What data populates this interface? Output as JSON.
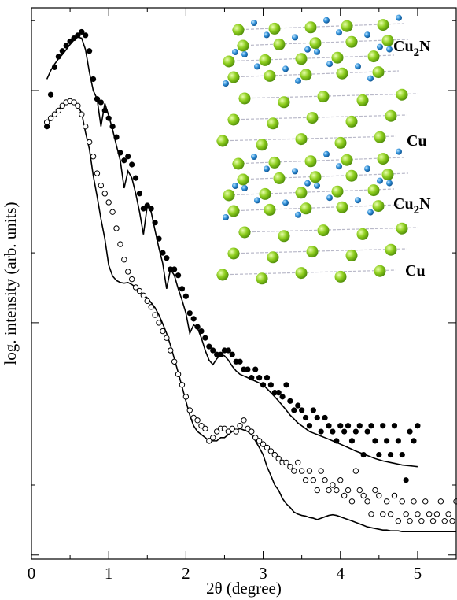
{
  "chart_data": {
    "type": "scatter",
    "ylabel": "log. intensity (arb. units)",
    "xlabel": "2θ  (degree)",
    "xlim": [
      0,
      5.5
    ],
    "xticks": [
      0,
      1,
      2,
      3,
      4,
      5
    ],
    "xminorticks": [
      0.5,
      1.5,
      2.5,
      3.5,
      4.5,
      5.5
    ],
    "ylim": [
      0.96,
      227
    ],
    "yticks": [
      1,
      10,
      100
    ],
    "yminorticks": [
      2,
      20,
      200
    ],
    "ylog": true,
    "x": [
      0.2,
      0.25,
      0.3,
      0.35,
      0.4,
      0.45,
      0.5,
      0.55,
      0.6,
      0.65,
      0.7,
      0.75,
      0.8,
      0.85,
      0.9,
      0.95,
      1,
      1.05,
      1.1,
      1.15,
      1.2,
      1.25,
      1.3,
      1.35,
      1.4,
      1.45,
      1.5,
      1.55,
      1.6,
      1.65,
      1.7,
      1.75,
      1.8,
      1.85,
      1.9,
      1.95,
      2,
      2.05,
      2.1,
      2.15,
      2.2,
      2.25,
      2.3,
      2.35,
      2.4,
      2.45,
      2.5,
      2.55,
      2.6,
      2.65,
      2.7,
      2.75,
      2.8,
      2.85,
      2.9,
      2.95,
      3,
      3.05,
      3.1,
      3.15,
      3.2,
      3.25,
      3.3,
      3.35,
      3.4,
      3.45,
      3.5,
      3.55,
      3.6,
      3.65,
      3.7,
      3.75,
      3.8,
      3.85,
      3.9,
      3.95,
      4,
      4.05,
      4.1,
      4.15,
      4.2,
      4.25,
      4.3,
      4.35,
      4.4,
      4.45,
      4.5,
      4.55,
      4.6,
      4.65,
      4.7,
      4.75,
      4.8,
      4.85,
      4.9,
      4.95,
      5,
      5.05,
      5.1,
      5.15,
      5.2,
      5.25,
      5.3,
      5.35,
      5.4,
      5.45,
      5.5
    ],
    "series": [
      {
        "style": "line",
        "color": "#000000",
        "values": [
          112,
          122,
          130,
          137,
          143,
          150,
          158,
          165,
          170,
          168,
          150,
          120,
          100,
          92,
          70,
          88,
          78,
          68,
          58,
          50,
          38,
          45,
          42,
          36,
          30,
          24,
          32,
          30,
          25,
          21,
          18,
          14,
          17,
          16,
          14,
          12.5,
          11,
          9.0,
          9.8,
          9.5,
          8.6,
          7.6,
          6.9,
          6.6,
          7.0,
          7.3,
          7.2,
          6.9,
          6.5,
          6.2,
          6.0,
          5.9,
          5.8,
          5.7,
          5.6,
          5.5,
          5.4,
          5.2,
          5.0,
          4.8,
          4.6,
          4.4,
          4.2,
          4.0,
          3.85,
          3.7,
          3.6,
          3.5,
          3.4,
          3.35,
          3.3,
          3.25,
          3.2,
          3.15,
          3.1,
          3.05,
          3.0,
          2.95,
          2.9,
          2.85,
          2.8,
          2.76,
          2.72,
          2.68,
          2.64,
          2.6,
          2.57,
          2.54,
          2.52,
          2.5,
          2.48,
          2.46,
          2.44,
          2.43,
          2.42,
          2.41,
          2.4,
          null,
          null,
          null,
          null,
          null,
          null,
          null,
          null,
          null,
          null
        ]
      },
      {
        "style": "line",
        "color": "#000000",
        "values": [
          73,
          76,
          79,
          83,
          86,
          88,
          89,
          88,
          86,
          80,
          66,
          56,
          43,
          35,
          28,
          23,
          17.7,
          15.9,
          15.2,
          14.9,
          14.8,
          14.9,
          14.6,
          14.2,
          13.7,
          13.2,
          12.8,
          12.2,
          11.6,
          10.8,
          9.9,
          9.0,
          8.0,
          7.0,
          6.1,
          5.3,
          4.6,
          4.0,
          3.6,
          3.4,
          3.3,
          3.2,
          3.1,
          3.1,
          3.1,
          3.2,
          3.2,
          3.3,
          3.4,
          3.45,
          3.5,
          3.45,
          3.4,
          3.3,
          3.1,
          2.9,
          2.7,
          2.4,
          2.2,
          2.0,
          1.9,
          1.75,
          1.66,
          1.6,
          1.53,
          1.5,
          1.48,
          1.47,
          1.45,
          1.44,
          1.42,
          1.44,
          1.46,
          1.48,
          1.49,
          1.48,
          1.46,
          1.44,
          1.42,
          1.4,
          1.38,
          1.36,
          1.34,
          1.32,
          1.31,
          1.3,
          1.29,
          1.28,
          1.28,
          1.27,
          1.27,
          1.27,
          1.26,
          1.26,
          1.26,
          1.26,
          1.26,
          1.26,
          1.26,
          1.26,
          1.26,
          1.26,
          1.26,
          1.26,
          1.26,
          1.26,
          1.26
        ]
      },
      {
        "style": "filled",
        "color": "#000000",
        "values": [
          70,
          96,
          126,
          140,
          148,
          156,
          163,
          168,
          173,
          179,
          173,
          148,
          112,
          92,
          89,
          82,
          76,
          70,
          63,
          54,
          50,
          52,
          48,
          42,
          36,
          31,
          32,
          31,
          27,
          23,
          20,
          19,
          17,
          17,
          16,
          14,
          13,
          11,
          10.4,
          9.6,
          9.2,
          8.6,
          7.9,
          7.6,
          7.3,
          7.3,
          7.6,
          7.6,
          7.3,
          6.8,
          6.8,
          6.3,
          6.3,
          5.8,
          6.3,
          5.8,
          5.4,
          5.8,
          5.4,
          5.0,
          5.0,
          4.8,
          5.4,
          4.6,
          4.2,
          4.4,
          4.2,
          3.9,
          3.6,
          4.2,
          3.9,
          3.4,
          3.9,
          3.6,
          3.4,
          3.1,
          3.6,
          3.4,
          3.6,
          3.1,
          3.4,
          3.6,
          2.7,
          3.4,
          3.6,
          3.1,
          2.7,
          3.6,
          3.1,
          2.7,
          3.6,
          3.1,
          2.7,
          2.1,
          3.4,
          3.1,
          3.6,
          null,
          null,
          null,
          null,
          null,
          null,
          null,
          null,
          null,
          null
        ]
      },
      {
        "style": "open",
        "color": "#000000",
        "values": [
          73,
          76,
          79,
          82,
          86,
          89,
          90,
          89,
          86,
          79,
          70,
          60,
          52,
          44,
          39,
          36,
          33,
          30,
          25.5,
          21.8,
          18.7,
          16.6,
          15.4,
          14.2,
          13.7,
          13.1,
          12.4,
          11.7,
          10.8,
          10,
          9.2,
          8.6,
          7.6,
          6.8,
          6.0,
          5.4,
          4.8,
          4.2,
          3.9,
          3.8,
          3.6,
          3.5,
          3.1,
          3.2,
          3.4,
          3.5,
          3.5,
          3.4,
          3.5,
          3.4,
          3.6,
          3.8,
          3.5,
          3.4,
          3.2,
          3.1,
          3.0,
          2.9,
          2.8,
          2.7,
          2.6,
          2.5,
          2.5,
          2.4,
          2.3,
          2.5,
          2.3,
          2.1,
          2.3,
          2.1,
          1.9,
          2.3,
          2.1,
          1.9,
          2.0,
          1.9,
          2.1,
          1.8,
          1.9,
          1.7,
          2.3,
          1.9,
          1.8,
          1.7,
          1.5,
          1.9,
          1.8,
          1.5,
          1.7,
          1.5,
          1.8,
          1.4,
          1.7,
          1.5,
          1.4,
          1.7,
          1.5,
          1.4,
          1.7,
          1.5,
          1.4,
          1.5,
          1.7,
          1.4,
          1.5,
          1.4,
          1.7
        ]
      }
    ],
    "inset_labels": [
      {
        "text": "Cu",
        "sub": "2",
        "tail": "N"
      },
      {
        "text": "Cu"
      },
      {
        "text": "Cu",
        "sub": "2",
        "tail": "N"
      },
      {
        "text": "Cu"
      }
    ]
  }
}
